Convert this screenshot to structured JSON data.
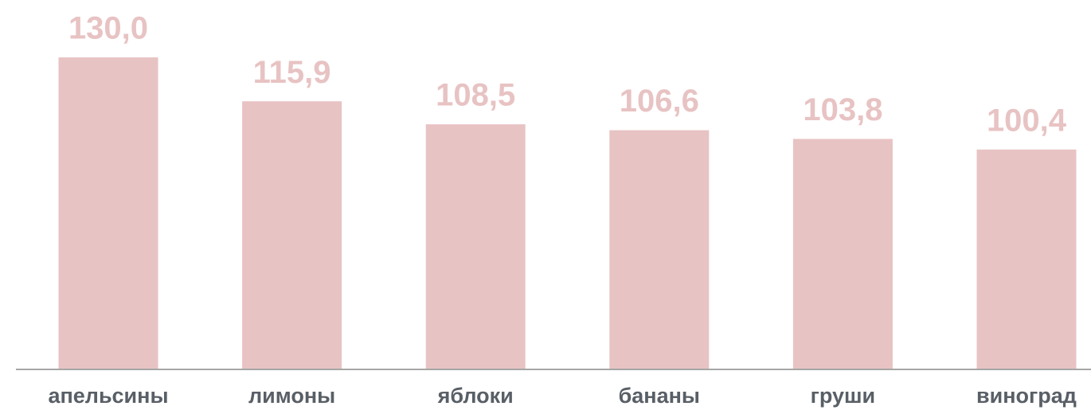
{
  "chart_data": {
    "type": "bar",
    "categories": [
      "апельсины",
      "лимоны",
      "яблоки",
      "бананы",
      "груши",
      "виноград"
    ],
    "values": [
      130.0,
      115.9,
      108.5,
      106.6,
      103.8,
      100.4
    ],
    "value_labels": [
      "130,0",
      "115,9",
      "108,5",
      "106,6",
      "103,8",
      "100,4"
    ],
    "color": "#e8c3c3",
    "ylim": [
      30,
      140
    ]
  }
}
